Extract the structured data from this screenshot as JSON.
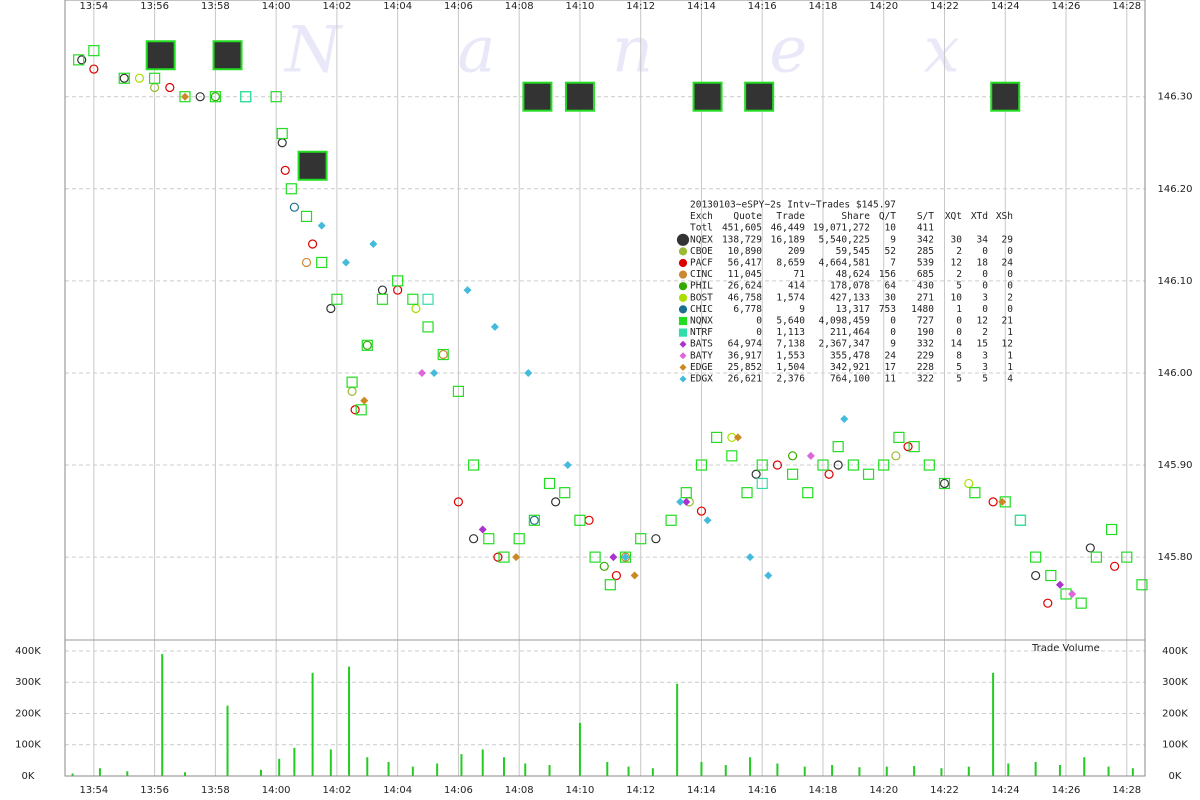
{
  "chart_data": [
    {
      "type": "scatter",
      "watermark": "N a n e x",
      "xlim": [
        833.05,
        868.6
      ],
      "ylim": [
        145.71,
        146.405
      ],
      "xticks": [
        {
          "value": 834,
          "label": "13:54"
        },
        {
          "value": 836,
          "label": "13:56"
        },
        {
          "value": 838,
          "label": "13:58"
        },
        {
          "value": 840,
          "label": "14:00"
        },
        {
          "value": 842,
          "label": "14:02"
        },
        {
          "value": 844,
          "label": "14:04"
        },
        {
          "value": 846,
          "label": "14:06"
        },
        {
          "value": 848,
          "label": "14:08"
        },
        {
          "value": 850,
          "label": "14:10"
        },
        {
          "value": 852,
          "label": "14:12"
        },
        {
          "value": 854,
          "label": "14:14"
        },
        {
          "value": 856,
          "label": "14:16"
        },
        {
          "value": 858,
          "label": "14:18"
        },
        {
          "value": 860,
          "label": "14:20"
        },
        {
          "value": 862,
          "label": "14:22"
        },
        {
          "value": 864,
          "label": "14:24"
        },
        {
          "value": 866,
          "label": "14:26"
        },
        {
          "value": 868,
          "label": "14:28"
        }
      ],
      "yticks": [
        {
          "value": 145.8,
          "label": "145.80"
        },
        {
          "value": 145.9,
          "label": "145.90"
        },
        {
          "value": 146.0,
          "label": "146.00"
        },
        {
          "value": 146.1,
          "label": "146.10"
        },
        {
          "value": 146.2,
          "label": "146.20"
        },
        {
          "value": 146.3,
          "label": "146.30"
        }
      ],
      "grid": true,
      "highlight_boxes": {
        "x": [
          836.2,
          838.4,
          841.2,
          848.6,
          850.0,
          854.2,
          855.9,
          864.0
        ],
        "values": [
          146.345,
          146.345,
          146.225,
          146.3,
          146.3,
          146.3,
          146.3,
          146.3
        ],
        "color": "#333333",
        "edge": "#22dd22"
      },
      "table": {
        "title": "20130103~eSPY~2s Intv~Trades $145.97",
        "columns": [
          "Exch",
          "Quote",
          "Trade",
          "Share",
          "Q/T",
          "S/T",
          "XQt",
          "XTd",
          "XSh"
        ],
        "total": {
          "name": "Totl",
          "stats": [
            "451,605",
            "46,449",
            "19,071,272",
            "10",
            "411"
          ]
        }
      },
      "series": [
        {
          "name": "NQEX",
          "color": "#333333",
          "marker": "circle",
          "stats": [
            "138,729",
            "16,189",
            "5,540,225",
            "9",
            "342",
            "30",
            "34",
            "29"
          ],
          "x": [
            833.6,
            835,
            837.5,
            840.2,
            841.8,
            843.5,
            846.5,
            849.2,
            852.5,
            855.8,
            858.5,
            862,
            865,
            866.8
          ],
          "values": [
            146.34,
            146.32,
            146.3,
            146.25,
            146.07,
            146.09,
            145.82,
            145.86,
            145.82,
            145.89,
            145.9,
            145.88,
            145.78,
            145.81
          ]
        },
        {
          "name": "CBOE",
          "color": "#99bb33",
          "marker": "circle",
          "stats": [
            "10,890",
            "209",
            "59,545",
            "52",
            "285",
            "2",
            "0",
            "0"
          ],
          "x": [
            836,
            842.5,
            853.6,
            860.4
          ],
          "values": [
            146.31,
            145.98,
            145.86,
            145.91
          ]
        },
        {
          "name": "PACF",
          "color": "#dd0000",
          "marker": "circle",
          "stats": [
            "56,417",
            "8,659",
            "4,664,581",
            "7",
            "539",
            "12",
            "18",
            "24"
          ],
          "x": [
            834,
            836.5,
            840.3,
            841.2,
            842.6,
            844,
            846,
            847.3,
            850.3,
            851.2,
            854,
            856.5,
            858.2,
            860.8,
            863.6,
            865.4,
            867.6
          ],
          "values": [
            146.33,
            146.31,
            146.22,
            146.14,
            145.96,
            146.09,
            145.86,
            145.8,
            145.84,
            145.78,
            145.85,
            145.9,
            145.89,
            145.92,
            145.86,
            145.75,
            145.79
          ]
        },
        {
          "name": "CINC",
          "color": "#cc8833",
          "marker": "circle",
          "stats": [
            "11,045",
            "71",
            "48,624",
            "156",
            "685",
            "2",
            "0",
            "0"
          ],
          "x": [
            841,
            845.5,
            851.5
          ],
          "values": [
            146.12,
            146.02,
            145.8
          ]
        },
        {
          "name": "PHIL",
          "color": "#33aa00",
          "marker": "circle",
          "stats": [
            "26,624",
            "414",
            "178,078",
            "64",
            "430",
            "5",
            "0",
            "0"
          ],
          "x": [
            838,
            843,
            850.8,
            857
          ],
          "values": [
            146.3,
            146.03,
            145.79,
            145.91
          ]
        },
        {
          "name": "BOST",
          "color": "#aadd00",
          "marker": "circle",
          "stats": [
            "46,758",
            "1,574",
            "427,133",
            "30",
            "271",
            "10",
            "3",
            "2"
          ],
          "x": [
            835.5,
            844.6,
            855,
            862.8
          ],
          "values": [
            146.32,
            146.07,
            145.93,
            145.88
          ]
        },
        {
          "name": "CHIC",
          "color": "#1d6f8f",
          "marker": "circle",
          "stats": [
            "6,778",
            "9",
            "13,317",
            "753",
            "1480",
            "1",
            "0",
            "0"
          ],
          "x": [
            840.6,
            848.5
          ],
          "values": [
            146.18,
            145.84
          ]
        },
        {
          "name": "NQNX",
          "color": "#22dd22",
          "marker": "square",
          "stats": [
            "0",
            "5,640",
            "4,098,459",
            "0",
            "727",
            "0",
            "12",
            "21"
          ],
          "x": [
            833.5,
            834,
            835,
            836,
            837,
            838,
            839,
            840,
            840.2,
            840.5,
            841,
            841.5,
            842,
            842.5,
            842.8,
            843,
            843.5,
            844,
            844.5,
            845,
            845.5,
            846,
            846.5,
            847,
            847.5,
            848,
            848.5,
            849,
            849.5,
            850,
            850.5,
            851,
            851.5,
            852,
            853,
            853.5,
            854,
            854.5,
            855,
            855.5,
            856,
            857,
            857.5,
            858,
            858.5,
            859,
            859.5,
            860,
            860.5,
            861,
            861.5,
            862,
            863,
            864,
            864.5,
            865,
            865.5,
            866,
            866.5,
            867,
            867.5,
            868,
            868.5
          ],
          "values": [
            146.34,
            146.35,
            146.32,
            146.32,
            146.3,
            146.3,
            146.3,
            146.3,
            146.26,
            146.2,
            146.17,
            146.12,
            146.08,
            145.99,
            145.96,
            146.03,
            146.08,
            146.1,
            146.08,
            146.05,
            146.02,
            145.98,
            145.9,
            145.82,
            145.8,
            145.82,
            145.84,
            145.88,
            145.87,
            145.84,
            145.8,
            145.77,
            145.8,
            145.82,
            145.84,
            145.87,
            145.9,
            145.93,
            145.91,
            145.87,
            145.9,
            145.89,
            145.87,
            145.9,
            145.92,
            145.9,
            145.89,
            145.9,
            145.93,
            145.92,
            145.9,
            145.88,
            145.87,
            145.86,
            145.84,
            145.8,
            145.78,
            145.76,
            145.75,
            145.8,
            145.83,
            145.8,
            145.77
          ]
        },
        {
          "name": "NTRF",
          "color": "#33ddaa",
          "marker": "square",
          "stats": [
            "0",
            "1,113",
            "211,464",
            "0",
            "190",
            "0",
            "2",
            "1"
          ],
          "x": [
            839,
            845,
            856,
            864.5
          ],
          "values": [
            146.3,
            146.08,
            145.88,
            145.84
          ]
        },
        {
          "name": "BATS",
          "color": "#aa33cc",
          "marker": "diamond",
          "stats": [
            "64,974",
            "7,138",
            "2,367,347",
            "9",
            "332",
            "14",
            "15",
            "12"
          ],
          "x": [
            846.8,
            851.1,
            853.5,
            865.8
          ],
          "values": [
            145.83,
            145.8,
            145.86,
            145.77
          ]
        },
        {
          "name": "BATY",
          "color": "#dd66dd",
          "marker": "diamond",
          "stats": [
            "36,917",
            "1,553",
            "355,478",
            "24",
            "229",
            "8",
            "3",
            "1"
          ],
          "x": [
            844.8,
            857.6,
            866.2
          ],
          "values": [
            146.0,
            145.91,
            145.76
          ]
        },
        {
          "name": "EDGE",
          "color": "#cc8822",
          "marker": "diamond",
          "stats": [
            "25,852",
            "1,504",
            "342,921",
            "17",
            "228",
            "5",
            "3",
            "1"
          ],
          "x": [
            837,
            842.9,
            847.9,
            851.8,
            855.2,
            863.9
          ],
          "values": [
            146.3,
            145.97,
            145.8,
            145.78,
            145.93,
            145.86
          ]
        },
        {
          "name": "EDGX",
          "color": "#44bbdd",
          "marker": "diamond",
          "stats": [
            "26,621",
            "2,376",
            "764,100",
            "11",
            "322",
            "5",
            "5",
            "4"
          ],
          "x": [
            841.5,
            842.3,
            843.2,
            845.2,
            846.3,
            847.2,
            848.3,
            849.6,
            851.5,
            853.3,
            854.2,
            855.6,
            856.2,
            858.7
          ],
          "values": [
            146.16,
            146.12,
            146.14,
            146.0,
            146.09,
            146.05,
            146.0,
            145.9,
            145.8,
            145.86,
            145.84,
            145.8,
            145.78,
            145.95
          ]
        }
      ]
    },
    {
      "type": "bar",
      "title": "Trade Volume",
      "color": "#22cc22",
      "xlim": [
        833.05,
        868.6
      ],
      "ylim": [
        0,
        435000
      ],
      "xticks": [
        {
          "value": 834,
          "label": "13:54"
        },
        {
          "value": 836,
          "label": "13:56"
        },
        {
          "value": 838,
          "label": "13:58"
        },
        {
          "value": 840,
          "label": "14:00"
        },
        {
          "value": 842,
          "label": "14:02"
        },
        {
          "value": 844,
          "label": "14:04"
        },
        {
          "value": 846,
          "label": "14:06"
        },
        {
          "value": 848,
          "label": "14:08"
        },
        {
          "value": 850,
          "label": "14:10"
        },
        {
          "value": 852,
          "label": "14:12"
        },
        {
          "value": 854,
          "label": "14:14"
        },
        {
          "value": 856,
          "label": "14:16"
        },
        {
          "value": 858,
          "label": "14:18"
        },
        {
          "value": 860,
          "label": "14:20"
        },
        {
          "value": 862,
          "label": "14:22"
        },
        {
          "value": 864,
          "label": "14:24"
        },
        {
          "value": 866,
          "label": "14:26"
        },
        {
          "value": 868,
          "label": "14:28"
        }
      ],
      "yticks": [
        {
          "value": 0,
          "label": "0K"
        },
        {
          "value": 100000,
          "label": "100K"
        },
        {
          "value": 200000,
          "label": "200K"
        },
        {
          "value": 300000,
          "label": "300K"
        },
        {
          "value": 400000,
          "label": "400K"
        }
      ],
      "grid": true,
      "x": [
        833.3,
        834.2,
        835.1,
        836.25,
        837,
        838.4,
        839.5,
        840.1,
        840.6,
        841.2,
        841.8,
        842.4,
        843,
        843.7,
        844.5,
        845.3,
        846.1,
        846.8,
        847.5,
        848.2,
        849,
        850,
        850.9,
        851.6,
        852.4,
        853.2,
        854,
        854.8,
        855.6,
        856.5,
        857.4,
        858.3,
        859.2,
        860.1,
        861,
        861.9,
        862.8,
        863.6,
        864.1,
        865,
        865.8,
        866.6,
        867.4,
        868.2
      ],
      "values": [
        8000,
        25000,
        15000,
        390000,
        12000,
        225000,
        20000,
        55000,
        90000,
        330000,
        85000,
        350000,
        60000,
        45000,
        30000,
        40000,
        70000,
        85000,
        60000,
        40000,
        35000,
        170000,
        45000,
        30000,
        25000,
        295000,
        45000,
        35000,
        60000,
        40000,
        30000,
        35000,
        28000,
        30000,
        32000,
        25000,
        30000,
        330000,
        40000,
        45000,
        35000,
        60000,
        30000,
        25000
      ]
    }
  ]
}
